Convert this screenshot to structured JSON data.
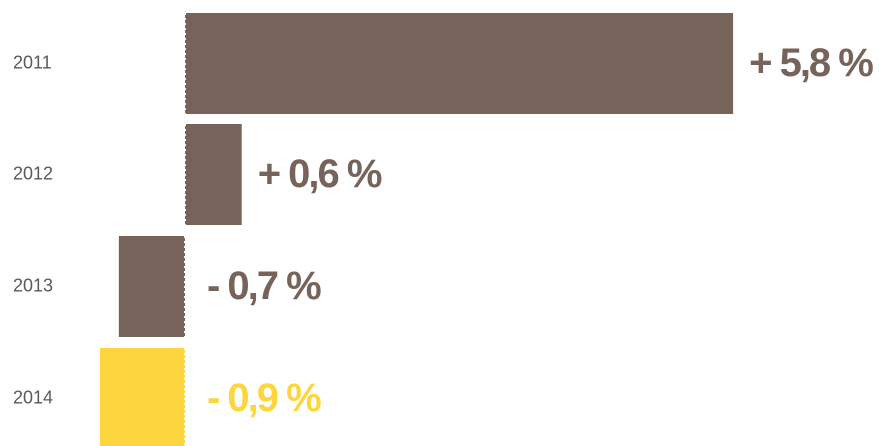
{
  "chart_data": {
    "type": "bar",
    "orientation": "horizontal",
    "categories": [
      "2011",
      "2012",
      "2013",
      "2014"
    ],
    "values": [
      5.8,
      0.6,
      -0.7,
      -0.9
    ],
    "value_labels": [
      "+ 5,8 %",
      "+ 0,6 %",
      "- 0,7 %",
      "- 0,9 %"
    ],
    "colors": [
      "#76635a",
      "#76635a",
      "#76635a",
      "#fdd63f"
    ]
  }
}
